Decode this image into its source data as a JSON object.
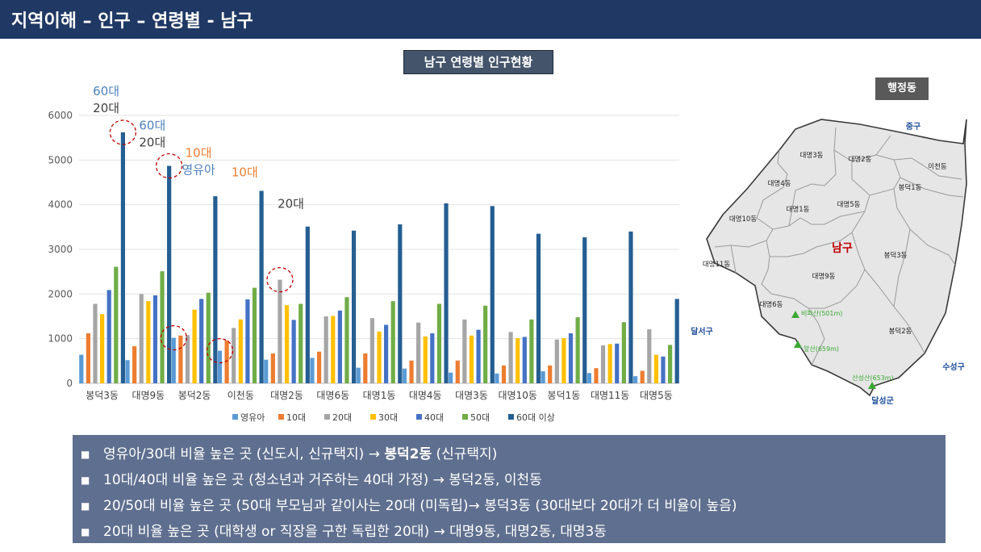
{
  "header": {
    "title": "지역이해 – 인구 – 연령별 - 남구"
  },
  "chart_title": "남구 연령별 인구현황",
  "map": {
    "label": "행정동",
    "district_name": "남구",
    "dongs": [
      "대명3동",
      "대명2동",
      "이천동",
      "봉덕1동",
      "대명4동",
      "대명1동",
      "대명5동",
      "대명10동",
      "대명11동",
      "대명9동",
      "봉덕3동",
      "대명6동",
      "봉덕2동"
    ],
    "neighbors": [
      "중구",
      "달서구",
      "수성구",
      "달성군"
    ],
    "mountains": [
      {
        "name": "비파산(501m)"
      },
      {
        "name": "앞산(659m)"
      },
      {
        "name": "산성산(653m)"
      }
    ],
    "colors": {
      "fill": "#e6e6e6",
      "border": "#9a9a9a",
      "outer_border": "#3a3a3a",
      "district": "#c00000",
      "neighbor": "#1f4e9a",
      "mountain": "#3aa832"
    }
  },
  "chart_data": {
    "type": "bar",
    "categories": [
      "봉덕3동",
      "대명9동",
      "봉덕2동",
      "이천동",
      "대명2동",
      "대명6동",
      "대명1동",
      "대명4동",
      "대명3동",
      "대명10동",
      "봉덕1동",
      "대명11동",
      "대명5동"
    ],
    "ylim": [
      0,
      6000
    ],
    "yticks": [
      0,
      1000,
      2000,
      3000,
      4000,
      5000,
      6000
    ],
    "grid": true,
    "legend_position": "bottom",
    "series": [
      {
        "name": "영유아",
        "color": "#5b9bd5",
        "values": [
          640,
          520,
          1020,
          730,
          530,
          570,
          350,
          330,
          240,
          220,
          270,
          230,
          160
        ]
      },
      {
        "name": "10대",
        "color": "#ed7d31",
        "values": [
          1120,
          830,
          1070,
          960,
          670,
          710,
          670,
          510,
          510,
          400,
          400,
          340,
          280
        ]
      },
      {
        "name": "20대",
        "color": "#a5a5a5",
        "values": [
          1780,
          2000,
          1080,
          1240,
          2320,
          1500,
          1460,
          1360,
          1430,
          1150,
          980,
          850,
          1210
        ]
      },
      {
        "name": "30대",
        "color": "#ffc000",
        "values": [
          1550,
          1840,
          1650,
          1430,
          1750,
          1510,
          1160,
          1050,
          1070,
          1010,
          1010,
          880,
          640
        ]
      },
      {
        "name": "40대",
        "color": "#4472c4",
        "values": [
          2090,
          1970,
          1890,
          1880,
          1420,
          1630,
          1310,
          1120,
          1200,
          1040,
          1120,
          890,
          600
        ]
      },
      {
        "name": "50대",
        "color": "#70ad47",
        "values": [
          2610,
          2510,
          2030,
          2140,
          1780,
          1930,
          1840,
          1780,
          1740,
          1430,
          1480,
          1370,
          860
        ]
      },
      {
        "name": "60대 이상",
        "color": "#255e91",
        "values": [
          5620,
          4870,
          4190,
          4310,
          3510,
          3420,
          3560,
          4030,
          3970,
          3350,
          3270,
          3400,
          1890
        ]
      }
    ],
    "highlights": [
      {
        "category_index": 0,
        "series_index": 6
      },
      {
        "category_index": 1,
        "series_index": 6
      },
      {
        "category_index": 2,
        "series_index": 0
      },
      {
        "category_index": 3,
        "series_index": 0
      },
      {
        "category_index": 4,
        "series_index": 2
      }
    ],
    "annotations": [
      {
        "category_index": 0,
        "value": 6000,
        "lines": [
          {
            "text": "60대",
            "color": "#4f81bd"
          },
          {
            "text": "20대",
            "color": "#404040"
          }
        ]
      },
      {
        "category_index": 1,
        "value": 5230,
        "lines": [
          {
            "text": "60대",
            "color": "#4f81bd"
          },
          {
            "text": "20대",
            "color": "#404040"
          }
        ]
      },
      {
        "category_index": 2,
        "value": 4620,
        "lines": [
          {
            "text": "10대",
            "color": "#ed7d31"
          },
          {
            "text": "영유아",
            "color": "#4f81bd"
          }
        ]
      },
      {
        "category_index": 3,
        "value": 4560,
        "lines": [
          {
            "text": "10대",
            "color": "#ed7d31"
          }
        ]
      },
      {
        "category_index": 4,
        "value": 3860,
        "lines": [
          {
            "text": "20대",
            "color": "#404040"
          }
        ]
      }
    ]
  },
  "bullets": [
    {
      "plain": "영유아/30대 비율 높은 곳 (신도시, 신규택지) → ",
      "bold": "봉덕2동",
      "tail": " (신규택지)"
    },
    {
      "plain": "10대/40대 비율 높은 곳 (청소년과 거주하는 40대 가정) → 봉덕2동, 이천동",
      "bold": "",
      "tail": ""
    },
    {
      "plain": "20/50대 비율 높은 곳 (50대 부모님과 같이사는 20대 (미독립)→ 봉덕3동 (30대보다 20대가 더 비율이 높음)",
      "bold": "",
      "tail": ""
    },
    {
      "plain": "20대 비율 높은 곳  (대학생 or 직장을 구한 독립한 20대) → 대명9동, 대명2동, 대명3동",
      "bold": "",
      "tail": ""
    }
  ]
}
